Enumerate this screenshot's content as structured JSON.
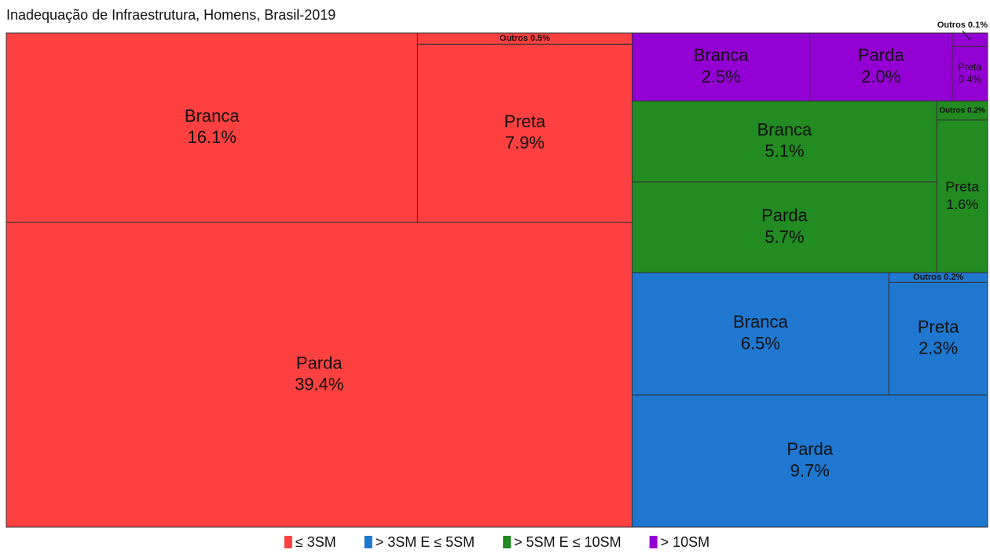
{
  "chart_data": {
    "type": "treemap",
    "title": "Inadequação de Infraestrutura, Homens, Brasil-2019",
    "groups": [
      {
        "name": "≤ 3SM",
        "color": "#ff4040",
        "labels": [
          "Branca",
          "Preta",
          "Outros",
          "Parda"
        ],
        "values": [
          16.1,
          7.9,
          0.5,
          39.4
        ],
        "value_labels": [
          "16.1%",
          "7.9%",
          "0.5%",
          "39.4%"
        ]
      },
      {
        "name": "> 3SM E ≤ 5SM",
        "color": "#1f77d0",
        "labels": [
          "Branca",
          "Preta",
          "Outros",
          "Parda"
        ],
        "values": [
          6.5,
          2.3,
          0.2,
          9.7
        ],
        "value_labels": [
          "6.5%",
          "2.3%",
          "0.2%",
          "9.7%"
        ]
      },
      {
        "name": "> 5SM E ≤ 10SM",
        "color": "#228b22",
        "labels": [
          "Branca",
          "Parda",
          "Preta",
          "Outros"
        ],
        "values": [
          5.1,
          5.7,
          1.6,
          0.2
        ],
        "value_labels": [
          "5.1%",
          "5.7%",
          "1.6%",
          "0.2%"
        ]
      },
      {
        "name": "> 10SM",
        "color": "#9400d3",
        "labels": [
          "Branca",
          "Parda",
          "Preta",
          "Outros"
        ],
        "values": [
          2.5,
          2.0,
          0.4,
          0.1
        ],
        "value_labels": [
          "2.5%",
          "2.0%",
          "0.4%",
          "0.1%"
        ]
      }
    ],
    "legend": "bottom"
  }
}
